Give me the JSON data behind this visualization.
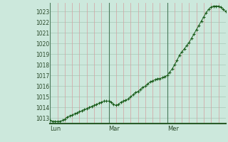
{
  "ylabel_values": [
    1013,
    1014,
    1015,
    1016,
    1017,
    1018,
    1019,
    1020,
    1021,
    1022,
    1023
  ],
  "ylim": [
    1012.5,
    1023.8
  ],
  "xlim": [
    0,
    72
  ],
  "day_ticks": [
    0,
    24,
    48
  ],
  "day_labels": [
    "Lun",
    "Mar",
    "Mer"
  ],
  "bg_color": "#cce8dc",
  "grid_color_h": "#a8c8b8",
  "grid_color_v_red": "#d4a0a0",
  "grid_color_v_dark": "#4a7a5a",
  "line_color": "#1a5c1a",
  "marker_color": "#1a5c1a",
  "bottom_line_color": "#2a5c2a",
  "data_x": [
    0,
    1,
    2,
    3,
    4,
    5,
    6,
    7,
    8,
    9,
    10,
    11,
    12,
    13,
    14,
    15,
    16,
    17,
    18,
    19,
    20,
    21,
    22,
    23,
    24,
    25,
    26,
    27,
    28,
    29,
    30,
    31,
    32,
    33,
    34,
    35,
    36,
    37,
    38,
    39,
    40,
    41,
    42,
    43,
    44,
    45,
    46,
    47,
    48,
    49,
    50,
    51,
    52,
    53,
    54,
    55,
    56,
    57,
    58,
    59,
    60,
    61,
    62,
    63,
    64,
    65,
    66,
    67,
    68,
    69,
    70,
    71,
    72
  ],
  "data_y": [
    1012.8,
    1012.7,
    1012.7,
    1012.7,
    1012.7,
    1012.8,
    1012.9,
    1013.1,
    1013.2,
    1013.3,
    1013.4,
    1013.5,
    1013.6,
    1013.7,
    1013.8,
    1013.9,
    1014.0,
    1014.1,
    1014.2,
    1014.3,
    1014.4,
    1014.5,
    1014.6,
    1014.6,
    1014.6,
    1014.5,
    1014.3,
    1014.2,
    1014.3,
    1014.5,
    1014.6,
    1014.7,
    1014.8,
    1015.0,
    1015.2,
    1015.4,
    1015.5,
    1015.7,
    1015.9,
    1016.0,
    1016.2,
    1016.4,
    1016.5,
    1016.6,
    1016.7,
    1016.7,
    1016.8,
    1016.9,
    1017.0,
    1017.3,
    1017.6,
    1018.0,
    1018.4,
    1018.9,
    1019.2,
    1019.5,
    1019.8,
    1020.1,
    1020.5,
    1020.9,
    1021.3,
    1021.7,
    1022.1,
    1022.5,
    1022.9,
    1023.2,
    1023.4,
    1023.5,
    1023.5,
    1023.5,
    1023.4,
    1023.2,
    1023.0
  ]
}
